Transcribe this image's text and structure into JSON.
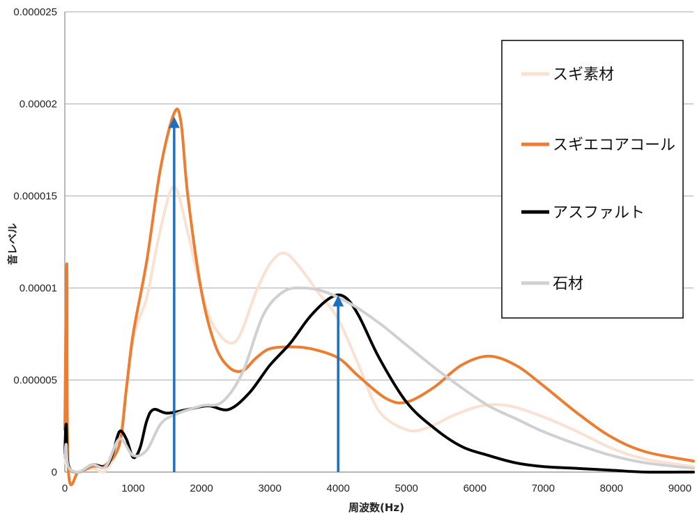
{
  "chart_data": {
    "type": "line",
    "title": "",
    "xlabel": "周波数(Hz)",
    "ylabel": "音レベル",
    "xlim": [
      0,
      9200
    ],
    "ylim": [
      0,
      2.5e-05
    ],
    "x_ticks": [
      "0",
      "1000",
      "2000",
      "3000",
      "4000",
      "5000",
      "6000",
      "7000",
      "8000",
      "9000"
    ],
    "y_ticks": [
      "0",
      "0.000005",
      "0.00001",
      "0.000015",
      "0.00002",
      "0.000025"
    ],
    "grid": "horizontal",
    "legend_position": "right",
    "series": [
      {
        "name": "スギ素材",
        "color": "#fbe1d2",
        "points": [
          [
            0,
            5e-07
          ],
          [
            40,
            8e-07
          ],
          [
            60,
            1e-07
          ],
          [
            200,
            0
          ],
          [
            400,
            2e-07
          ],
          [
            600,
            1e-07
          ],
          [
            800,
            1.8e-06
          ],
          [
            1000,
            7.2e-06
          ],
          [
            1200,
            9.5e-06
          ],
          [
            1400,
            1.32e-05
          ],
          [
            1600,
            1.55e-05
          ],
          [
            1800,
            1.3e-05
          ],
          [
            2000,
            9.8e-06
          ],
          [
            2200,
            7.8e-06
          ],
          [
            2500,
            7.1e-06
          ],
          [
            2800,
            9.8e-06
          ],
          [
            3000,
            1.13e-05
          ],
          [
            3200,
            1.19e-05
          ],
          [
            3400,
            1.13e-05
          ],
          [
            3700,
            9.8e-06
          ],
          [
            4000,
            8.3e-06
          ],
          [
            4300,
            5.8e-06
          ],
          [
            4600,
            3.3e-06
          ],
          [
            5000,
            2.3e-06
          ],
          [
            5300,
            2.4e-06
          ],
          [
            5700,
            3.1e-06
          ],
          [
            6100,
            3.6e-06
          ],
          [
            6500,
            3.6e-06
          ],
          [
            7000,
            3e-06
          ],
          [
            7500,
            2.2e-06
          ],
          [
            8000,
            1.3e-06
          ],
          [
            8500,
            7e-07
          ],
          [
            9200,
            3e-07
          ]
        ]
      },
      {
        "name": "スギエコアコール",
        "color": "#ed7d31",
        "points": [
          [
            0,
            2.3e-06
          ],
          [
            30,
            1.13e-05
          ],
          [
            50,
            2e-07
          ],
          [
            200,
            0
          ],
          [
            400,
            3e-07
          ],
          [
            600,
            4e-07
          ],
          [
            800,
            1.5e-06
          ],
          [
            900,
            4.5e-06
          ],
          [
            1000,
            7.5e-06
          ],
          [
            1200,
            1.15e-05
          ],
          [
            1400,
            1.65e-05
          ],
          [
            1600,
            1.95e-05
          ],
          [
            1700,
            1.9e-05
          ],
          [
            1800,
            1.5e-05
          ],
          [
            2000,
            9.8e-06
          ],
          [
            2200,
            6.9e-06
          ],
          [
            2400,
            5.7e-06
          ],
          [
            2600,
            5.5e-06
          ],
          [
            2800,
            6.2e-06
          ],
          [
            3000,
            6.7e-06
          ],
          [
            3300,
            6.8e-06
          ],
          [
            3600,
            6.7e-06
          ],
          [
            4000,
            6.2e-06
          ],
          [
            4300,
            5.2e-06
          ],
          [
            4700,
            4e-06
          ],
          [
            5000,
            3.8e-06
          ],
          [
            5400,
            4.6e-06
          ],
          [
            5800,
            5.8e-06
          ],
          [
            6200,
            6.3e-06
          ],
          [
            6600,
            5.8e-06
          ],
          [
            7000,
            4.7e-06
          ],
          [
            7500,
            3.2e-06
          ],
          [
            8000,
            1.9e-06
          ],
          [
            8500,
            1.1e-06
          ],
          [
            9200,
            6e-07
          ]
        ]
      },
      {
        "name": "アスファルト",
        "color": "#000000",
        "points": [
          [
            0,
            1e-06
          ],
          [
            20,
            2.6e-06
          ],
          [
            50,
            4e-07
          ],
          [
            200,
            0
          ],
          [
            400,
            4e-07
          ],
          [
            600,
            3e-07
          ],
          [
            700,
            1e-06
          ],
          [
            800,
            2.2e-06
          ],
          [
            900,
            1.8e-06
          ],
          [
            1000,
            8e-07
          ],
          [
            1100,
            1.3e-06
          ],
          [
            1200,
            2.8e-06
          ],
          [
            1300,
            3.4e-06
          ],
          [
            1500,
            3.2e-06
          ],
          [
            1800,
            3.4e-06
          ],
          [
            2100,
            3.6e-06
          ],
          [
            2400,
            3.4e-06
          ],
          [
            2700,
            4.3e-06
          ],
          [
            3000,
            5.8e-06
          ],
          [
            3300,
            7e-06
          ],
          [
            3600,
            8.5e-06
          ],
          [
            3900,
            9.5e-06
          ],
          [
            4100,
            9.5e-06
          ],
          [
            4300,
            8.5e-06
          ],
          [
            4600,
            6.2e-06
          ],
          [
            5000,
            3.8e-06
          ],
          [
            5400,
            2.4e-06
          ],
          [
            5800,
            1.4e-06
          ],
          [
            6200,
            9e-07
          ],
          [
            6600,
            5e-07
          ],
          [
            7000,
            3e-07
          ],
          [
            7500,
            2e-07
          ],
          [
            8000,
            1e-07
          ],
          [
            8500,
            0
          ],
          [
            9200,
            0
          ]
        ]
      },
      {
        "name": "石材",
        "color": "#d0d0d0",
        "points": [
          [
            0,
            8e-07
          ],
          [
            20,
            1.5e-06
          ],
          [
            50,
            3e-07
          ],
          [
            200,
            0
          ],
          [
            400,
            4e-07
          ],
          [
            600,
            3e-07
          ],
          [
            800,
            1.8e-06
          ],
          [
            1000,
            9e-07
          ],
          [
            1200,
            1.2e-06
          ],
          [
            1400,
            2.6e-06
          ],
          [
            1600,
            3.1e-06
          ],
          [
            2000,
            3.6e-06
          ],
          [
            2300,
            3.8e-06
          ],
          [
            2600,
            5.4e-06
          ],
          [
            2900,
            8.5e-06
          ],
          [
            3200,
            9.8e-06
          ],
          [
            3500,
            1e-05
          ],
          [
            3800,
            9.8e-06
          ],
          [
            4200,
            9.1e-06
          ],
          [
            4600,
            8.1e-06
          ],
          [
            5000,
            6.9e-06
          ],
          [
            5400,
            5.7e-06
          ],
          [
            5800,
            4.6e-06
          ],
          [
            6200,
            3.6e-06
          ],
          [
            6600,
            2.9e-06
          ],
          [
            7000,
            2.2e-06
          ],
          [
            7500,
            1.5e-06
          ],
          [
            8000,
            9e-07
          ],
          [
            8500,
            5e-07
          ],
          [
            9200,
            2e-07
          ]
        ]
      }
    ],
    "annotations": [
      {
        "type": "arrow",
        "color": "#1f6fbd",
        "x": 1600,
        "y_from": 0,
        "y_to": 1.93e-05
      },
      {
        "type": "arrow",
        "color": "#1f6fbd",
        "x": 4000,
        "y_from": 0,
        "y_to": 9.6e-06
      }
    ]
  }
}
